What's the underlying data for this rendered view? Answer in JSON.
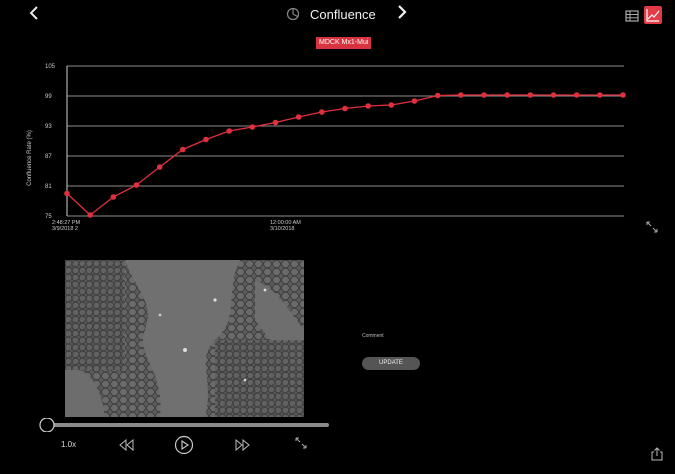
{
  "header": {
    "back_icon": "chevron-left-icon",
    "title": "Confluence",
    "title_icon": "pie-chart-icon",
    "next_icon": "chevron-right-icon",
    "table_view_icon": "table-icon",
    "chart_view_icon": "line-chart-icon",
    "accent_color": "#e23b47"
  },
  "sample_badge": "MDCK Mx1-Mui",
  "chart_data": {
    "type": "line",
    "title": "",
    "xlabel": "",
    "ylabel": "Confluence Rate (%)",
    "ylim": [
      75,
      105
    ],
    "yticks": [
      "105",
      "99",
      "93",
      "87",
      "81",
      "75"
    ],
    "xtick_labels": [
      {
        "line1": "2:48:27 PM",
        "line2": "3/9/2018 2"
      },
      {
        "line1": "12:00:00 AM",
        "line2": "3/10/2018"
      }
    ],
    "grid": true,
    "series": [
      {
        "color": "#e0303d",
        "values": [
          79.5,
          75.2,
          78.8,
          81.2,
          84.8,
          88.3,
          90.3,
          92.0,
          92.8,
          93.7,
          94.8,
          95.8,
          96.5,
          97.0,
          97.2,
          98.0,
          99.1,
          99.2,
          99.2,
          99.2,
          99.2,
          99.2,
          99.2,
          99.2,
          99.2
        ]
      }
    ]
  },
  "viewer": {
    "expand_icon": "expand-arrows-icon",
    "speed": "1.0x",
    "rewind_icon": "rewind-icon",
    "play_icon": "play-circle-icon",
    "forward_icon": "fast-forward-icon",
    "fullscreen_icon": "fullscreen-arrows-icon",
    "timeline_position": 0.0
  },
  "comment": {
    "label": "Comment",
    "update_label": "UPDATE"
  },
  "share_icon": "share-icon"
}
